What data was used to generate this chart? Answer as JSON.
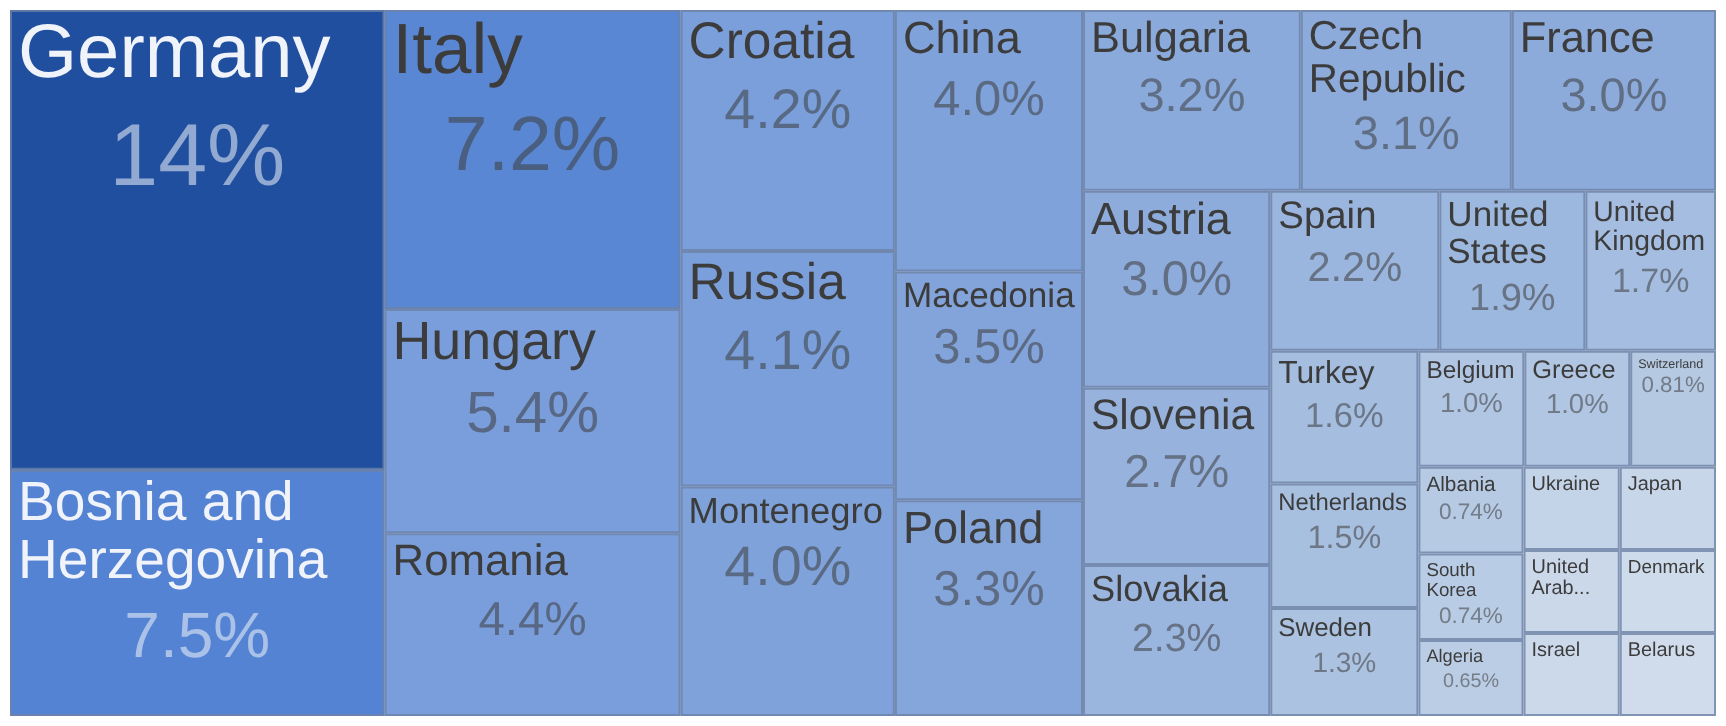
{
  "chart_data": {
    "type": "other",
    "categories": [
      "Germany",
      "Bosnia and Herzegovina",
      "Italy",
      "Hungary",
      "Romania",
      "Croatia",
      "Russia",
      "Montenegro",
      "China",
      "Macedonia",
      "Poland",
      "Bulgaria",
      "Czech Republic",
      "France",
      "Austria",
      "Slovenia",
      "Slovakia",
      "Spain",
      "United States",
      "United Kingdom",
      "Turkey",
      "Netherlands",
      "Sweden",
      "Belgium",
      "Greece",
      "Switzerland",
      "Albania",
      "South Korea",
      "Algeria",
      "Ukraine",
      "Japan",
      "United Arab...",
      "Israel",
      "Denmark",
      "Belarus"
    ],
    "values": [
      14,
      7.5,
      7.2,
      5.4,
      4.4,
      4.2,
      4.1,
      4.0,
      4.0,
      3.5,
      3.3,
      3.2,
      3.1,
      3.0,
      3.0,
      2.7,
      2.3,
      2.2,
      1.9,
      1.7,
      1.6,
      1.5,
      1.3,
      1.0,
      1.0,
      0.81,
      0.74,
      0.74,
      0.65,
      null,
      null,
      null,
      null,
      null,
      null
    ],
    "value_labels": [
      "14%",
      "7.5%",
      "7.2%",
      "5.4%",
      "4.4%",
      "4.2%",
      "4.1%",
      "4.0%",
      "4.0%",
      "3.5%",
      "3.3%",
      "3.2%",
      "3.1%",
      "3.0%",
      "3.0%",
      "2.7%",
      "2.3%",
      "2.2%",
      "1.9%",
      "1.7%",
      "1.6%",
      "1.5%",
      "1.3%",
      "1.0%",
      "1.0%",
      "0.81%",
      "0.74%",
      "0.74%",
      "0.65%",
      null,
      null,
      null,
      null,
      null,
      null
    ],
    "colors": [
      "#1f4f9e",
      "#5583d3",
      "#5a87d3",
      "#7a9edb",
      "#7a9edb",
      "#7b9fdb",
      "#7b9fdb",
      "#7fa2da",
      "#7fa2da",
      "#82a4da",
      "#85a6db",
      "#8aaadb",
      "#8cabdb",
      "#8cabdb",
      "#8eacdb",
      "#96b2dd",
      "#9ab5de",
      "#9bb6de",
      "#9db8de",
      "#a4bde0",
      "#a5bee0",
      "#a8c0e0",
      "#abc2e1",
      "#b1c6e3",
      "#b1c6e3",
      "#b5c9e3",
      "#b7cae4",
      "#b9cce5",
      "#bbcde5",
      "#c3d3e8",
      "#c8d6ea",
      "#cad8ea",
      "#ccd9eb",
      "#cedbeb",
      "#d0dcec"
    ]
  }
}
